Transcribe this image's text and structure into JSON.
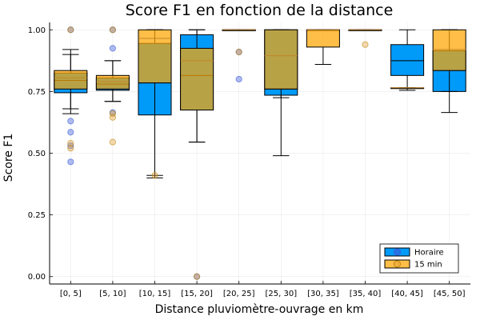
{
  "chart_data": {
    "type": "box",
    "title": "Score F1 en fonction de la distance",
    "xlabel": "Distance pluviomètre-ouvrage en km",
    "ylabel": "Score F1",
    "ylim": [
      0,
      1
    ],
    "yticks": [
      "0.00",
      "0.25",
      "0.50",
      "0.75",
      "1.00"
    ],
    "grid": true,
    "legend_position": "bottom-right",
    "categories": [
      "[0, 5]",
      "[5, 10]",
      "[10, 15]",
      "[15, 20]",
      "[20, 25]",
      "[25, 30]",
      "[30, 35]",
      "[35, 40]",
      "[40, 45]",
      "[45, 50]"
    ],
    "series": [
      {
        "name": "Horaire",
        "color": "#009af9",
        "boxes": [
          {
            "lower_whisker": 0.68,
            "q1": 0.745,
            "median": 0.795,
            "q3": 0.825,
            "upper_whisker": 0.92,
            "outliers": [
              1.0,
              0.63,
              0.585,
              0.53,
              0.465
            ]
          },
          {
            "lower_whisker": 0.71,
            "q1": 0.755,
            "median": 0.78,
            "q3": 0.805,
            "upper_whisker": 0.875,
            "outliers": [
              1.0,
              0.925,
              0.665
            ]
          },
          {
            "lower_whisker": 0.4,
            "q1": 0.655,
            "median": 0.785,
            "q3": 0.945,
            "upper_whisker": 1.0,
            "outliers": []
          },
          {
            "lower_whisker": 0.545,
            "q1": 0.675,
            "median": 0.815,
            "q3": 0.98,
            "upper_whisker": 1.0,
            "outliers": [
              0.0
            ]
          },
          {
            "lower_whisker": 1.0,
            "q1": 1.0,
            "median": 1.0,
            "q3": 1.0,
            "upper_whisker": 1.0,
            "outliers": [
              0.91,
              0.8
            ]
          },
          {
            "lower_whisker": 0.725,
            "q1": 0.735,
            "median": 0.76,
            "q3": 1.0,
            "upper_whisker": 1.0,
            "outliers": []
          },
          {
            "lower_whisker": 1.0,
            "q1": 1.0,
            "median": 1.0,
            "q3": 1.0,
            "upper_whisker": 1.0,
            "outliers": []
          },
          {
            "lower_whisker": 1.0,
            "q1": 1.0,
            "median": 1.0,
            "q3": 1.0,
            "upper_whisker": 1.0,
            "outliers": []
          },
          {
            "lower_whisker": 0.755,
            "q1": 0.815,
            "median": 0.875,
            "q3": 0.94,
            "upper_whisker": 1.0,
            "outliers": []
          },
          {
            "lower_whisker": 0.665,
            "q1": 0.75,
            "median": 0.835,
            "q3": 0.915,
            "upper_whisker": 1.0,
            "outliers": []
          }
        ]
      },
      {
        "name": "15 min",
        "color": "#e26f46",
        "boxes": [
          {
            "lower_whisker": 0.66,
            "q1": 0.76,
            "median": 0.805,
            "q3": 0.835,
            "upper_whisker": 0.9,
            "outliers": [
              1.0,
              0.54,
              0.52
            ]
          },
          {
            "lower_whisker": 0.71,
            "q1": 0.76,
            "median": 0.79,
            "q3": 0.815,
            "upper_whisker": 0.875,
            "outliers": [
              1.0,
              0.66,
              0.645,
              0.545
            ]
          },
          {
            "lower_whisker": 0.41,
            "q1": 0.785,
            "median": 0.965,
            "q3": 1.0,
            "upper_whisker": 1.0,
            "outliers": [
              0.41
            ]
          },
          {
            "lower_whisker": 0.545,
            "q1": 0.675,
            "median": 0.875,
            "q3": 0.925,
            "upper_whisker": 1.0,
            "outliers": [
              0.0
            ]
          },
          {
            "lower_whisker": 1.0,
            "q1": 1.0,
            "median": 1.0,
            "q3": 1.0,
            "upper_whisker": 1.0,
            "outliers": [
              0.91
            ]
          },
          {
            "lower_whisker": 0.49,
            "q1": 0.76,
            "median": 0.895,
            "q3": 1.0,
            "upper_whisker": 1.0,
            "outliers": []
          },
          {
            "lower_whisker": 0.86,
            "q1": 0.93,
            "median": 1.0,
            "q3": 1.0,
            "upper_whisker": 1.0,
            "outliers": []
          },
          {
            "lower_whisker": 1.0,
            "q1": 1.0,
            "median": 1.0,
            "q3": 1.0,
            "upper_whisker": 1.0,
            "outliers": [
              0.94
            ]
          },
          {
            "lower_whisker": 0.765,
            "q1": 0.765,
            "median": 0.765,
            "q3": 0.765,
            "upper_whisker": 0.765,
            "outliers": []
          },
          {
            "lower_whisker": 0.75,
            "q1": 0.835,
            "median": 0.92,
            "q3": 1.0,
            "upper_whisker": 1.0,
            "outliers": []
          }
        ]
      }
    ]
  }
}
